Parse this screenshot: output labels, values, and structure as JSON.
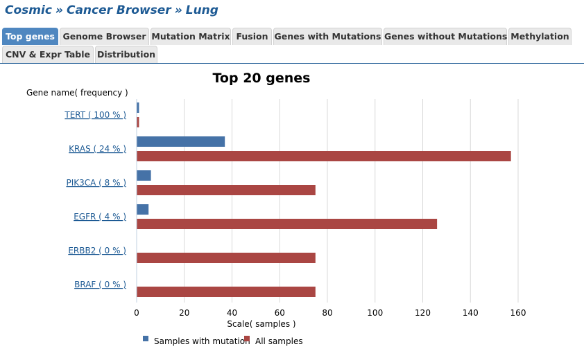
{
  "breadcrumb": {
    "parts": [
      "Cosmic",
      "Cancer Browser",
      "Lung"
    ],
    "separator": "»"
  },
  "tabs": [
    {
      "label": "Top genes",
      "active": true
    },
    {
      "label": "Genome Browser",
      "active": false
    },
    {
      "label": "Mutation Matrix",
      "active": false
    },
    {
      "label": "Fusion",
      "active": false
    },
    {
      "label": "Genes with Mutations",
      "active": false
    },
    {
      "label": "Genes without Mutations",
      "active": false
    },
    {
      "label": "Methylation",
      "active": false
    },
    {
      "label": "CNV & Expr Table",
      "active": false
    },
    {
      "label": "Distribution",
      "active": false
    }
  ],
  "colors": {
    "brand": "#1d5a94",
    "active_tab": "#4f87c0",
    "series_mutation": "#4572a7",
    "series_all": "#aa4643"
  },
  "chart_data": {
    "type": "bar",
    "orientation": "horizontal",
    "title": "Top 20 genes",
    "ylabel": "Gene name( frequency )",
    "xlabel": "Scale( samples )",
    "xlim": [
      0,
      160
    ],
    "xticks": [
      0,
      20,
      40,
      60,
      80,
      100,
      120,
      140,
      160
    ],
    "grid": true,
    "legend_position": "bottom-left",
    "categories": [
      "TERT ( 100 % )",
      "KRAS ( 24 % )",
      "PIK3CA ( 8 % )",
      "EGFR ( 4 % )",
      "ERBB2 ( 0 % )",
      "BRAF ( 0 % )"
    ],
    "series": [
      {
        "name": "Samples with mutation",
        "color": "#4572a7",
        "values": [
          1,
          37,
          6,
          5,
          0,
          0
        ]
      },
      {
        "name": "All samples",
        "color": "#aa4643",
        "values": [
          1,
          157,
          75,
          126,
          75,
          75
        ]
      }
    ]
  }
}
